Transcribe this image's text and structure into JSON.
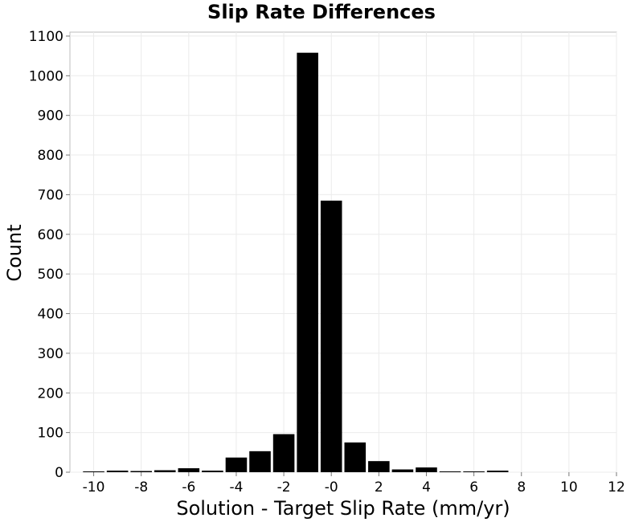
{
  "chart_data": {
    "type": "bar",
    "title": "Slip Rate Differences",
    "xlabel": "Solution - Target Slip Rate (mm/yr)",
    "ylabel": "Count",
    "xlim": [
      -11,
      12
    ],
    "ylim": [
      0,
      1110
    ],
    "grid": true,
    "bin_width": 1,
    "xticks": [
      -10,
      -8,
      -6,
      -4,
      -2,
      0,
      2,
      4,
      6,
      8,
      10,
      12
    ],
    "xtick_labels": [
      "-10",
      "-8",
      "-6",
      "-4",
      "-2",
      "-0",
      "2",
      "4",
      "6",
      "8",
      "10",
      "12"
    ],
    "yticks": [
      0,
      100,
      200,
      300,
      400,
      500,
      600,
      700,
      800,
      900,
      1000,
      1100
    ],
    "bins": [
      {
        "x": -10,
        "value": 2
      },
      {
        "x": -9,
        "value": 4
      },
      {
        "x": -8,
        "value": 3
      },
      {
        "x": -7,
        "value": 5
      },
      {
        "x": -6,
        "value": 10
      },
      {
        "x": -5,
        "value": 4
      },
      {
        "x": -4,
        "value": 37
      },
      {
        "x": -3,
        "value": 53
      },
      {
        "x": -2,
        "value": 96
      },
      {
        "x": -1,
        "value": 1058
      },
      {
        "x": 0,
        "value": 685
      },
      {
        "x": 1,
        "value": 75
      },
      {
        "x": 2,
        "value": 28
      },
      {
        "x": 3,
        "value": 7
      },
      {
        "x": 4,
        "value": 12
      },
      {
        "x": 5,
        "value": 2
      },
      {
        "x": 6,
        "value": 1
      },
      {
        "x": 7,
        "value": 4
      },
      {
        "x": 8,
        "value": 0
      },
      {
        "x": 9,
        "value": 0
      },
      {
        "x": 10,
        "value": 0
      }
    ],
    "colors": {
      "bar": "#000000",
      "grid": "#ebebeb",
      "border": "#bdbdbd"
    }
  }
}
